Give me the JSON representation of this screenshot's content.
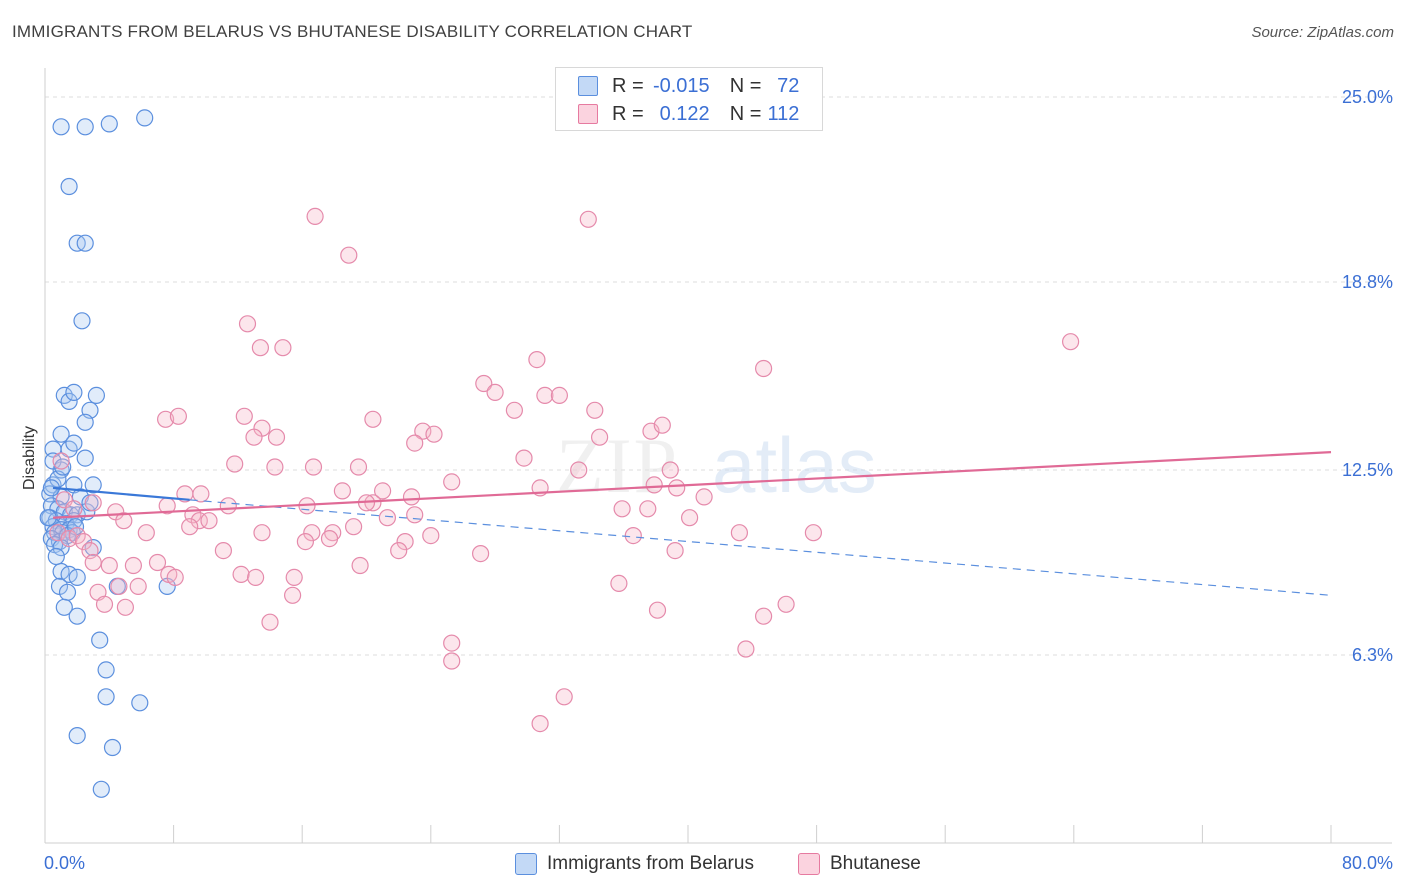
{
  "header": {
    "title": "IMMIGRANTS FROM BELARUS VS BHUTANESE DISABILITY CORRELATION CHART",
    "source": "Source: ZipAtlas.com"
  },
  "watermark": {
    "zip": "ZIP",
    "atlas": "atlas"
  },
  "legend": {
    "r_label": "R =",
    "n_label": "N =",
    "rows": [
      {
        "r": "-0.015",
        "n": "72",
        "color": "#a9c8f2"
      },
      {
        "r": "0.122",
        "n": "112",
        "color": "#f7b6c9"
      }
    ]
  },
  "bottom_legend": [
    {
      "label": "Immigrants from Belarus",
      "color": "#a9c8f2"
    },
    {
      "label": "Bhutanese",
      "color": "#f7b6c9"
    }
  ],
  "colors": {
    "blue": "#5b8fde",
    "pink": "#e67aa0",
    "axis_text": "#3b6fd4"
  },
  "chart_data": {
    "type": "scatter",
    "title": "IMMIGRANTS FROM BELARUS VS BHUTANESE DISABILITY CORRELATION CHART",
    "ylabel": "Disability",
    "xlabel": "",
    "xlim": [
      0,
      80
    ],
    "ylim": [
      0,
      25
    ],
    "x_tick_labels": [
      "0.0%",
      "80.0%"
    ],
    "y_ticks": [
      6.3,
      12.5,
      18.8,
      25.0
    ],
    "y_tick_labels": [
      "6.3%",
      "12.5%",
      "18.8%",
      "25.0%"
    ],
    "grid": "horizontal dashed",
    "legend_position": "top-center",
    "series": [
      {
        "name": "Immigrants from Belarus",
        "color": "#5b8fde",
        "r": -0.015,
        "n": 72,
        "trend": {
          "solid": [
            [
              0.5,
              11.9
            ],
            [
              9.0,
              11.5
            ]
          ],
          "dashed": [
            [
              9.0,
              11.5
            ],
            [
              80.0,
              8.3
            ]
          ]
        },
        "points": [
          [
            1.0,
            24.0
          ],
          [
            2.5,
            24.0
          ],
          [
            4.0,
            24.1
          ],
          [
            6.2,
            24.3
          ],
          [
            1.5,
            22.0
          ],
          [
            2.0,
            20.1
          ],
          [
            2.5,
            20.1
          ],
          [
            2.3,
            17.5
          ],
          [
            1.2,
            15.0
          ],
          [
            1.5,
            14.8
          ],
          [
            1.8,
            15.1
          ],
          [
            3.2,
            15.0
          ],
          [
            2.8,
            14.5
          ],
          [
            1.0,
            13.7
          ],
          [
            2.5,
            14.1
          ],
          [
            0.5,
            13.2
          ],
          [
            1.5,
            13.2
          ],
          [
            1.8,
            13.4
          ],
          [
            2.5,
            12.9
          ],
          [
            1.0,
            12.5
          ],
          [
            0.5,
            12.0
          ],
          [
            1.8,
            12.0
          ],
          [
            3.0,
            12.0
          ],
          [
            0.3,
            11.7
          ],
          [
            1.0,
            11.6
          ],
          [
            2.2,
            11.6
          ],
          [
            0.4,
            11.3
          ],
          [
            0.8,
            11.2
          ],
          [
            1.2,
            11.1
          ],
          [
            1.6,
            11.0
          ],
          [
            2.0,
            11.0
          ],
          [
            0.3,
            10.9
          ],
          [
            0.7,
            10.8
          ],
          [
            1.3,
            10.7
          ],
          [
            1.8,
            10.8
          ],
          [
            0.5,
            10.6
          ],
          [
            1.0,
            10.5
          ],
          [
            1.5,
            10.5
          ],
          [
            0.6,
            10.4
          ],
          [
            1.1,
            10.4
          ],
          [
            1.7,
            10.4
          ],
          [
            0.4,
            10.2
          ],
          [
            0.9,
            10.1
          ],
          [
            1.4,
            10.3
          ],
          [
            0.6,
            10.0
          ],
          [
            1.0,
            9.9
          ],
          [
            3.0,
            9.9
          ],
          [
            1.0,
            9.1
          ],
          [
            1.5,
            9.0
          ],
          [
            2.0,
            8.9
          ],
          [
            0.9,
            8.6
          ],
          [
            1.4,
            8.4
          ],
          [
            4.5,
            8.6
          ],
          [
            7.6,
            8.6
          ],
          [
            1.2,
            7.9
          ],
          [
            2.0,
            7.6
          ],
          [
            3.4,
            6.8
          ],
          [
            3.8,
            5.8
          ],
          [
            3.8,
            4.9
          ],
          [
            5.9,
            4.7
          ],
          [
            2.0,
            3.6
          ],
          [
            4.2,
            3.2
          ],
          [
            3.5,
            1.8
          ],
          [
            0.5,
            12.8
          ],
          [
            0.8,
            12.2
          ],
          [
            2.6,
            11.1
          ],
          [
            1.9,
            10.6
          ],
          [
            0.2,
            10.9
          ],
          [
            0.4,
            11.9
          ],
          [
            2.8,
            11.4
          ],
          [
            1.1,
            12.6
          ],
          [
            0.7,
            9.6
          ]
        ]
      },
      {
        "name": "Bhutanese",
        "color": "#e67aa0",
        "r": 0.122,
        "n": 112,
        "trend": {
          "solid": [
            [
              0.5,
              10.9
            ],
            [
              80.0,
              13.1
            ]
          ]
        },
        "points": [
          [
            16.8,
            21.0
          ],
          [
            33.8,
            20.9
          ],
          [
            18.9,
            19.7
          ],
          [
            1.0,
            12.8
          ],
          [
            12.6,
            17.4
          ],
          [
            13.4,
            16.6
          ],
          [
            14.8,
            16.6
          ],
          [
            30.6,
            16.2
          ],
          [
            44.7,
            15.9
          ],
          [
            63.8,
            16.8
          ],
          [
            27.3,
            15.4
          ],
          [
            28.0,
            15.1
          ],
          [
            31.1,
            15.0
          ],
          [
            32.0,
            15.0
          ],
          [
            29.2,
            14.5
          ],
          [
            34.2,
            14.5
          ],
          [
            7.5,
            14.2
          ],
          [
            8.3,
            14.3
          ],
          [
            12.4,
            14.3
          ],
          [
            20.4,
            14.2
          ],
          [
            13.5,
            13.9
          ],
          [
            13.0,
            13.6
          ],
          [
            14.4,
            13.6
          ],
          [
            23.5,
            13.8
          ],
          [
            24.2,
            13.7
          ],
          [
            23.0,
            13.4
          ],
          [
            34.5,
            13.6
          ],
          [
            37.7,
            13.8
          ],
          [
            38.4,
            14.0
          ],
          [
            29.8,
            12.9
          ],
          [
            11.8,
            12.7
          ],
          [
            14.3,
            12.6
          ],
          [
            16.7,
            12.6
          ],
          [
            19.5,
            12.6
          ],
          [
            33.2,
            12.5
          ],
          [
            38.9,
            12.5
          ],
          [
            25.3,
            12.1
          ],
          [
            30.8,
            11.9
          ],
          [
            37.9,
            12.0
          ],
          [
            39.3,
            11.9
          ],
          [
            3.0,
            11.4
          ],
          [
            8.7,
            11.7
          ],
          [
            9.7,
            11.7
          ],
          [
            18.5,
            11.8
          ],
          [
            21.0,
            11.8
          ],
          [
            22.8,
            11.6
          ],
          [
            9.2,
            11.0
          ],
          [
            7.6,
            11.3
          ],
          [
            11.4,
            11.3
          ],
          [
            16.3,
            11.3
          ],
          [
            20.4,
            11.4
          ],
          [
            20.0,
            11.4
          ],
          [
            35.9,
            11.2
          ],
          [
            37.5,
            11.2
          ],
          [
            41.0,
            11.6
          ],
          [
            4.4,
            11.1
          ],
          [
            4.9,
            10.8
          ],
          [
            9.6,
            10.8
          ],
          [
            10.2,
            10.8
          ],
          [
            21.3,
            10.9
          ],
          [
            23.0,
            11.0
          ],
          [
            40.1,
            10.9
          ],
          [
            1.2,
            11.5
          ],
          [
            1.8,
            11.2
          ],
          [
            0.8,
            10.4
          ],
          [
            1.5,
            10.2
          ],
          [
            2.0,
            10.3
          ],
          [
            2.4,
            10.1
          ],
          [
            9.0,
            10.6
          ],
          [
            13.5,
            10.4
          ],
          [
            16.6,
            10.4
          ],
          [
            17.9,
            10.4
          ],
          [
            19.2,
            10.6
          ],
          [
            24.0,
            10.3
          ],
          [
            36.6,
            10.3
          ],
          [
            43.2,
            10.4
          ],
          [
            47.8,
            10.4
          ],
          [
            2.8,
            9.8
          ],
          [
            6.3,
            10.4
          ],
          [
            11.1,
            9.8
          ],
          [
            16.2,
            10.1
          ],
          [
            17.7,
            10.2
          ],
          [
            22.4,
            10.1
          ],
          [
            22.0,
            9.8
          ],
          [
            27.1,
            9.7
          ],
          [
            39.2,
            9.8
          ],
          [
            3.0,
            9.4
          ],
          [
            4.0,
            9.3
          ],
          [
            5.5,
            9.3
          ],
          [
            7.0,
            9.4
          ],
          [
            19.6,
            9.3
          ],
          [
            7.7,
            9.0
          ],
          [
            8.1,
            8.9
          ],
          [
            12.2,
            9.0
          ],
          [
            13.1,
            8.9
          ],
          [
            15.5,
            8.9
          ],
          [
            3.3,
            8.4
          ],
          [
            4.6,
            8.6
          ],
          [
            5.8,
            8.6
          ],
          [
            15.4,
            8.3
          ],
          [
            35.7,
            8.7
          ],
          [
            3.7,
            8.0
          ],
          [
            5.0,
            7.9
          ],
          [
            38.1,
            7.8
          ],
          [
            44.7,
            7.6
          ],
          [
            46.1,
            8.0
          ],
          [
            14.0,
            7.4
          ],
          [
            25.3,
            6.7
          ],
          [
            25.3,
            6.1
          ],
          [
            43.6,
            6.5
          ],
          [
            32.3,
            4.9
          ],
          [
            30.8,
            4.0
          ]
        ]
      }
    ]
  }
}
